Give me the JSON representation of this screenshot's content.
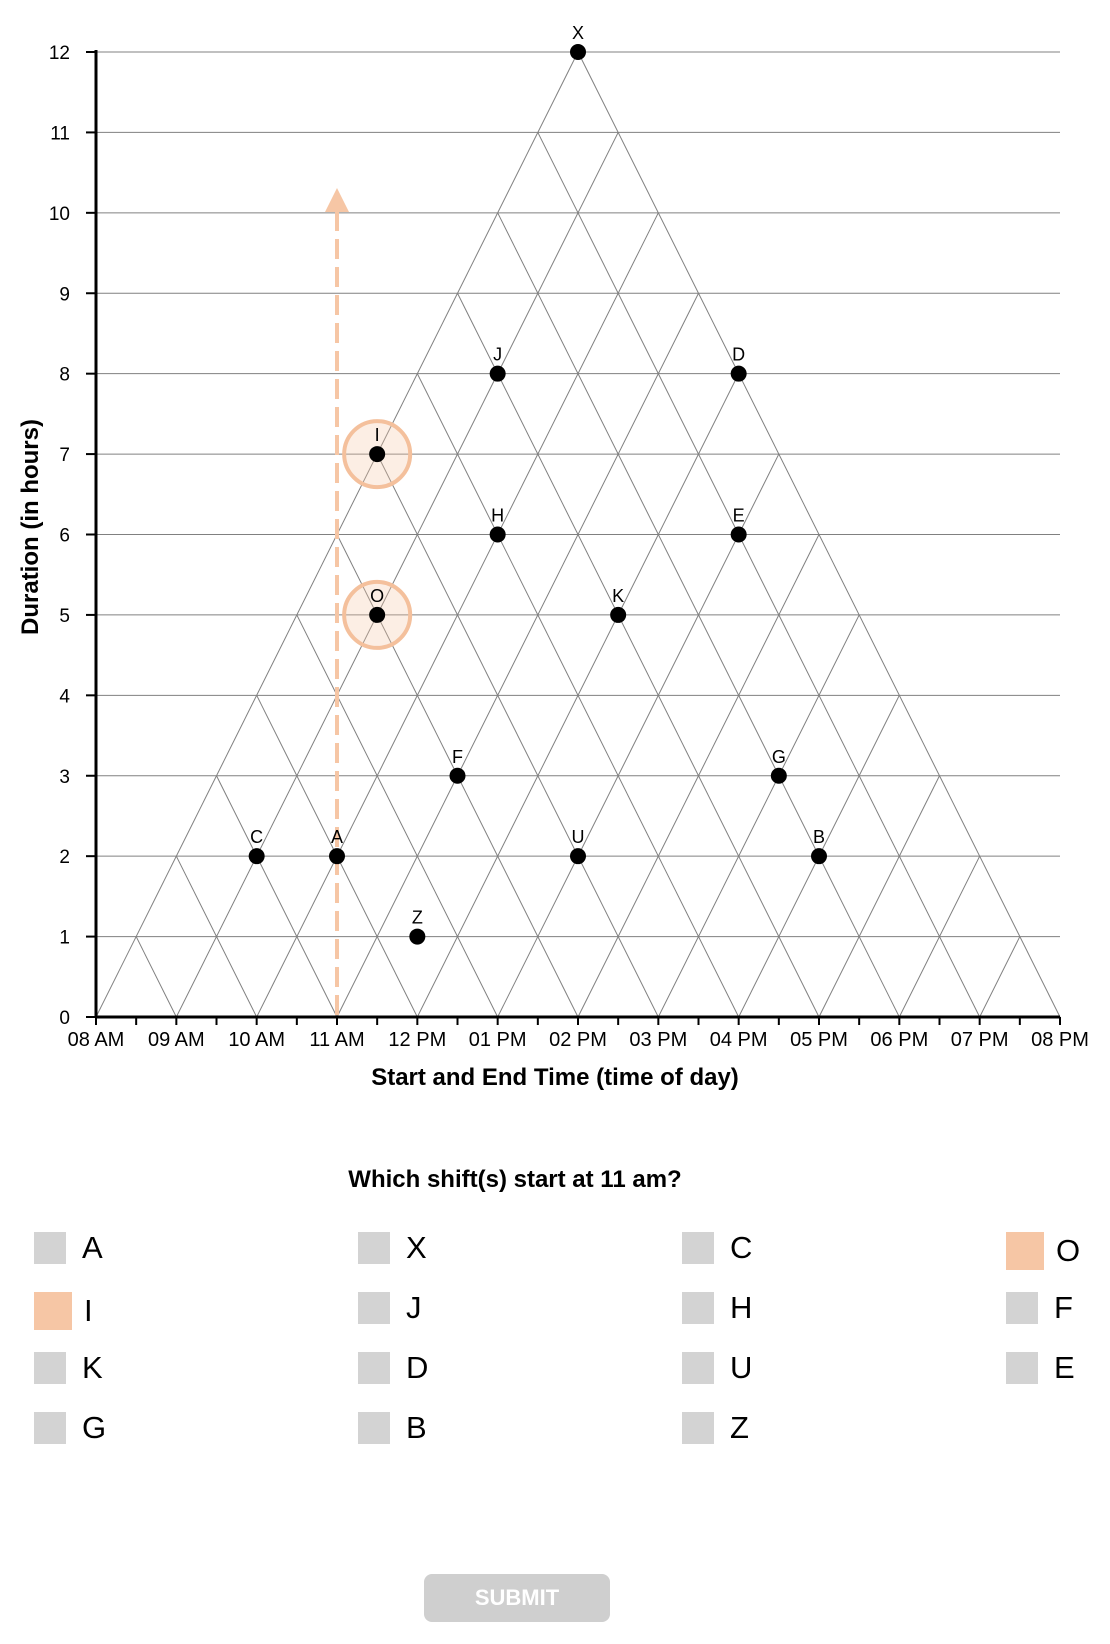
{
  "chart_data": {
    "type": "scatter",
    "xlabel": "Start and End Time (time of day)",
    "ylabel": "Duration (in hours)",
    "x_ticks": [
      "08 AM",
      "09 AM",
      "10 AM",
      "11 AM",
      "12 PM",
      "01 PM",
      "02 PM",
      "03 PM",
      "04 PM",
      "05 PM",
      "06 PM",
      "07 PM",
      "08 PM"
    ],
    "y_ticks": [
      "0",
      "1",
      "2",
      "3",
      "4",
      "5",
      "6",
      "7",
      "8",
      "9",
      "10",
      "11",
      "12"
    ],
    "xlim": [
      8,
      20
    ],
    "ylim": [
      0,
      12
    ],
    "grid": true,
    "points": [
      {
        "label": "X",
        "start": 8,
        "duration": 12
      },
      {
        "label": "J",
        "start": 9,
        "duration": 8
      },
      {
        "label": "D",
        "start": 12,
        "duration": 8
      },
      {
        "label": "I",
        "start": 8,
        "duration": 7
      },
      {
        "label": "H",
        "start": 10,
        "duration": 6
      },
      {
        "label": "E",
        "start": 13,
        "duration": 6
      },
      {
        "label": "O",
        "start": 9,
        "duration": 5
      },
      {
        "label": "K",
        "start": 12,
        "duration": 5
      },
      {
        "label": "F",
        "start": 11,
        "duration": 3
      },
      {
        "label": "G",
        "start": 15,
        "duration": 3
      },
      {
        "label": "C",
        "start": 9,
        "duration": 2
      },
      {
        "label": "A",
        "start": 10,
        "duration": 2
      },
      {
        "label": "U",
        "start": 13,
        "duration": 2
      },
      {
        "label": "B",
        "start": 16,
        "duration": 2
      },
      {
        "label": "Z",
        "start": 11.5,
        "duration": 1
      }
    ],
    "highlighted": [
      "I",
      "O"
    ],
    "guide_start": 11
  },
  "colors": {
    "highlight": "#f6c6a5",
    "highlight_stroke": "#f4c09c",
    "checkbox": "#d3d3d3",
    "point": "#000000",
    "grid": "#808080",
    "submit_bg": "#cfcfcf"
  },
  "question": "Which shift(s) start at 11 am?",
  "options": [
    {
      "label": "A",
      "selected": false
    },
    {
      "label": "X",
      "selected": false
    },
    {
      "label": "C",
      "selected": false
    },
    {
      "label": "O",
      "selected": true
    },
    {
      "label": "I",
      "selected": true
    },
    {
      "label": "J",
      "selected": false
    },
    {
      "label": "H",
      "selected": false
    },
    {
      "label": "F",
      "selected": false
    },
    {
      "label": "K",
      "selected": false
    },
    {
      "label": "D",
      "selected": false
    },
    {
      "label": "U",
      "selected": false
    },
    {
      "label": "E",
      "selected": false
    },
    {
      "label": "G",
      "selected": false
    },
    {
      "label": "B",
      "selected": false
    },
    {
      "label": "Z",
      "selected": false
    }
  ],
  "submit_label": "SUBMIT"
}
